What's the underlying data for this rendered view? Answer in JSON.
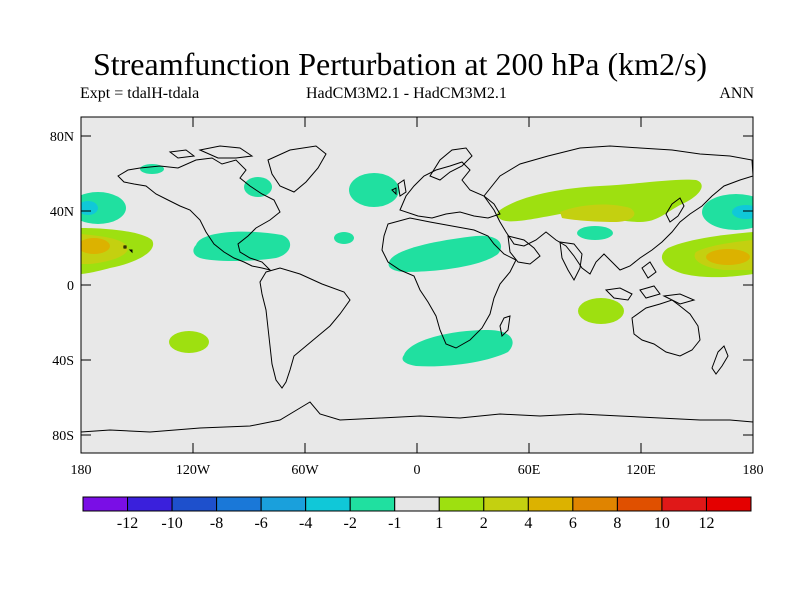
{
  "title": "Streamfunction Perturbation at 200 hPa (km2/s)",
  "subtitle_left": "Expt = tdalH-tdala",
  "subtitle_center": "HadCM3M2.1 - HadCM3M2.1",
  "subtitle_right": "ANN",
  "map": {
    "lat_ticks": [
      "80N",
      "40N",
      "0",
      "40S",
      "80S"
    ],
    "lon_ticks": [
      "180",
      "120W",
      "60W",
      "0",
      "60E",
      "120E",
      "180"
    ],
    "land_color": "#e8e8e8"
  },
  "colorbar": {
    "labels": [
      "-12",
      "-10",
      "-8",
      "-6",
      "-4",
      "-2",
      "-1",
      "1",
      "2",
      "4",
      "6",
      "8",
      "10",
      "12"
    ],
    "colors": [
      "#7a0ee6",
      "#3a20dc",
      "#1e50cc",
      "#1a78d8",
      "#1aa0dc",
      "#10c8d8",
      "#20e0a0",
      "#e6e6e6",
      "#9ee010",
      "#c4d010",
      "#dcb200",
      "#e08400",
      "#e05000",
      "#e01818",
      "#e40000"
    ]
  },
  "anomalies": [
    {
      "level": "-1",
      "color": "#20e0a0"
    },
    {
      "level": "-2",
      "color": "#10c8d8"
    },
    {
      "level": "1",
      "color": "#9ee010"
    },
    {
      "level": "2",
      "color": "#c4d010"
    },
    {
      "level": "4",
      "color": "#dcb200"
    }
  ]
}
